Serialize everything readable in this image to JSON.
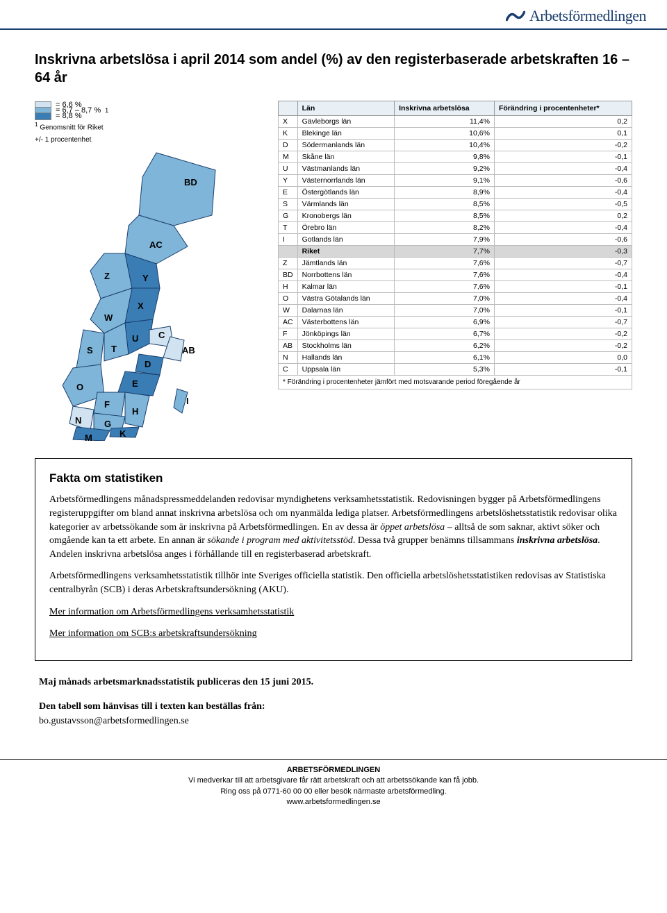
{
  "logo_text": "Arbetsförmedlingen",
  "title": "Inskrivna arbetslösa i april 2014 som andel (%) av  den registerbaserade arbetskraften 16 – 64 år",
  "legend": {
    "items": [
      {
        "color": "#d1e3f0",
        "label": "= 6,6 %"
      },
      {
        "color": "#7fb5d8",
        "label": "= 6,7 – 8,7 %"
      },
      {
        "color": "#3a7db4",
        "label": "= 8,8 %"
      }
    ],
    "note1_sup": "1",
    "note1": " Genomsnitt för Riket",
    "note2": "+/- 1 procentenhet",
    "sup1": "1"
  },
  "map": {
    "colors": {
      "light": "#d1e3f0",
      "mid": "#7fb5d8",
      "dark": "#3a7db4",
      "stroke": "#1a3e6e"
    },
    "labels": {
      "BD": "BD",
      "AC": "AC",
      "Z": "Z",
      "Y": "Y",
      "X": "X",
      "W": "W",
      "C": "C",
      "S": "S",
      "U": "U",
      "T": "T",
      "AB": "AB",
      "D": "D",
      "O": "O",
      "E": "E",
      "F": "F",
      "I": "I",
      "N": "N",
      "G": "G",
      "H": "H",
      "K": "K",
      "M": "M"
    }
  },
  "table": {
    "headers": {
      "blank": "",
      "lan": "Län",
      "col1": "Inskrivna arbetslösa",
      "col2": "Förändring i procentenheter*"
    },
    "rows": [
      {
        "code": "X",
        "name": "Gävleborgs län",
        "v1": "11,4%",
        "v2": "0,2"
      },
      {
        "code": "K",
        "name": "Blekinge län",
        "v1": "10,6%",
        "v2": "0,1"
      },
      {
        "code": "D",
        "name": "Södermanlands län",
        "v1": "10,4%",
        "v2": "-0,2"
      },
      {
        "code": "M",
        "name": "Skåne län",
        "v1": "9,8%",
        "v2": "-0,1"
      },
      {
        "code": "U",
        "name": "Västmanlands län",
        "v1": "9,2%",
        "v2": "-0,4"
      },
      {
        "code": "Y",
        "name": "Västernorrlands län",
        "v1": "9,1%",
        "v2": "-0,6"
      },
      {
        "code": "E",
        "name": "Östergötlands län",
        "v1": "8,9%",
        "v2": "-0,4"
      },
      {
        "code": "S",
        "name": "Värmlands län",
        "v1": "8,5%",
        "v2": "-0,5"
      },
      {
        "code": "G",
        "name": "Kronobergs län",
        "v1": "8,5%",
        "v2": "0,2"
      },
      {
        "code": "T",
        "name": "Örebro län",
        "v1": "8,2%",
        "v2": "-0,4"
      },
      {
        "code": "I",
        "name": "Gotlands län",
        "v1": "7,9%",
        "v2": "-0,6"
      },
      {
        "code": "",
        "name": "Riket",
        "v1": "7,7%",
        "v2": "-0,3",
        "riket": true
      },
      {
        "code": "Z",
        "name": "Jämtlands län",
        "v1": "7,6%",
        "v2": "-0,7"
      },
      {
        "code": "BD",
        "name": "Norrbottens län",
        "v1": "7,6%",
        "v2": "-0,4"
      },
      {
        "code": "H",
        "name": "Kalmar län",
        "v1": "7,6%",
        "v2": "-0,1"
      },
      {
        "code": "O",
        "name": "Västra Götalands län",
        "v1": "7,0%",
        "v2": "-0,4"
      },
      {
        "code": "W",
        "name": "Dalarnas län",
        "v1": "7,0%",
        "v2": "-0,1"
      },
      {
        "code": "AC",
        "name": "Västerbottens län",
        "v1": "6,9%",
        "v2": "-0,7"
      },
      {
        "code": "F",
        "name": "Jönköpings län",
        "v1": "6,7%",
        "v2": "-0,2"
      },
      {
        "code": "AB",
        "name": "Stockholms län",
        "v1": "6,2%",
        "v2": "-0,2"
      },
      {
        "code": "N",
        "name": "Hallands län",
        "v1": "6,1%",
        "v2": "0,0"
      },
      {
        "code": "C",
        "name": "Uppsala län",
        "v1": "5,3%",
        "v2": "-0,1"
      }
    ],
    "footnote": "* Förändring i procentenheter jämfört med motsvarande period föregående år"
  },
  "fakta": {
    "heading": "Fakta om statistiken",
    "p1a": "Arbetsförmedlingens månadspressmeddelanden redovisar myndighetens verksamhetsstatistik. Redovisningen bygger på Arbetsförmedlingens registeruppgifter om bland annat inskrivna arbetslösa och om nyanmälda lediga platser. Arbetsförmedlingens arbetslöshetsstatistik redovisar olika kategorier av arbetssökande som är inskrivna på Arbetsförmedlingen. En av dessa är ",
    "p1i1": "öppet arbetslösa",
    "p1b": " – alltså de som saknar, aktivt söker och omgående kan ta ett arbete. En annan är ",
    "p1i2": "sökande i program med aktivitetsstöd",
    "p1c": ". Dessa två grupper benämns tillsammans ",
    "p1bi": "inskrivna arbetslösa",
    "p1d": ". Andelen inskrivna arbetslösa anges i förhållande till en registerbaserad arbetskraft.",
    "p2": "Arbetsförmedlingens verksamhetsstatistik tillhör inte Sveriges officiella statistik. Den officiella arbetslöshetsstatistiken redovisas av Statistiska centralbyrån (SCB) i deras Arbetskraftsundersökning (AKU).",
    "link1": "Mer information om Arbetsförmedlingens verksamhetsstatistik",
    "link2": "Mer information om SCB:s arbetskraftsundersökning"
  },
  "below": {
    "p1": "Maj månads arbetsmarknadsstatistik publiceras den 15 juni 2015.",
    "p2": "Den tabell som hänvisas till i texten kan beställas från:",
    "email": "bo.gustavsson@arbetsformedlingen.se"
  },
  "footer": {
    "org": "ARBETSFÖRMEDLINGEN",
    "l1": "Vi medverkar till att arbetsgivare får rätt arbetskraft och att arbetssökande kan få jobb.",
    "l2": "Ring oss på 0771-60 00 00 eller besök närmaste arbetsförmedling.",
    "l3": "www.arbetsformedlingen.se"
  }
}
